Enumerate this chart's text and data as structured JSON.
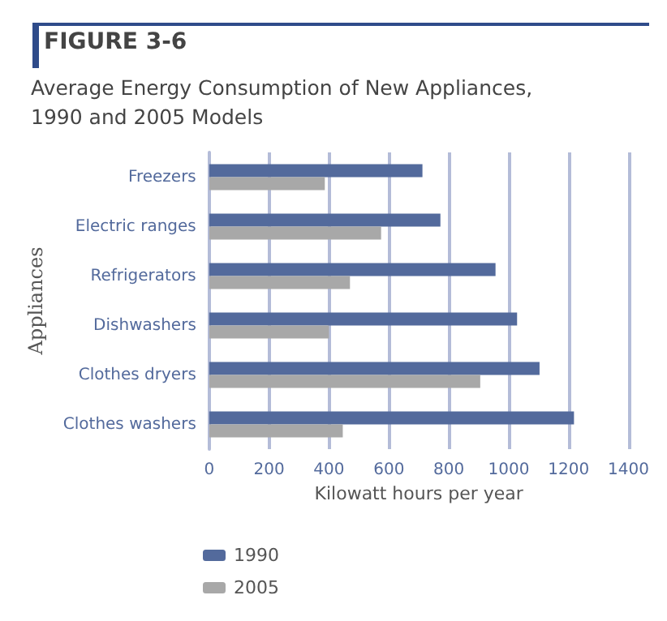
{
  "chart_data": {
    "type": "bar",
    "orientation": "horizontal",
    "title": "FIGURE 3-6",
    "subtitle": "Average Energy Consumption of New Appliances,\n1990 and 2005 Models",
    "xlabel": "Kilowatt hours per year",
    "ylabel": "Appliances",
    "categories": [
      "Freezers",
      "Electric ranges",
      "Refrigerators",
      "Dishwashers",
      "Clothes dryers",
      "Clothes washers"
    ],
    "series": [
      {
        "name": "1990",
        "color": "#536a9c",
        "values": [
          712,
          772,
          956,
          1028,
          1103,
          1218
        ]
      },
      {
        "name": "2005",
        "color": "#a8a8a8",
        "values": [
          386,
          574,
          470,
          400,
          905,
          446
        ]
      }
    ],
    "xlim": [
      0,
      1400
    ],
    "xticks": [
      0,
      200,
      400,
      600,
      800,
      1000,
      1200,
      1400
    ],
    "grid": "x",
    "legend": "bottom left"
  }
}
